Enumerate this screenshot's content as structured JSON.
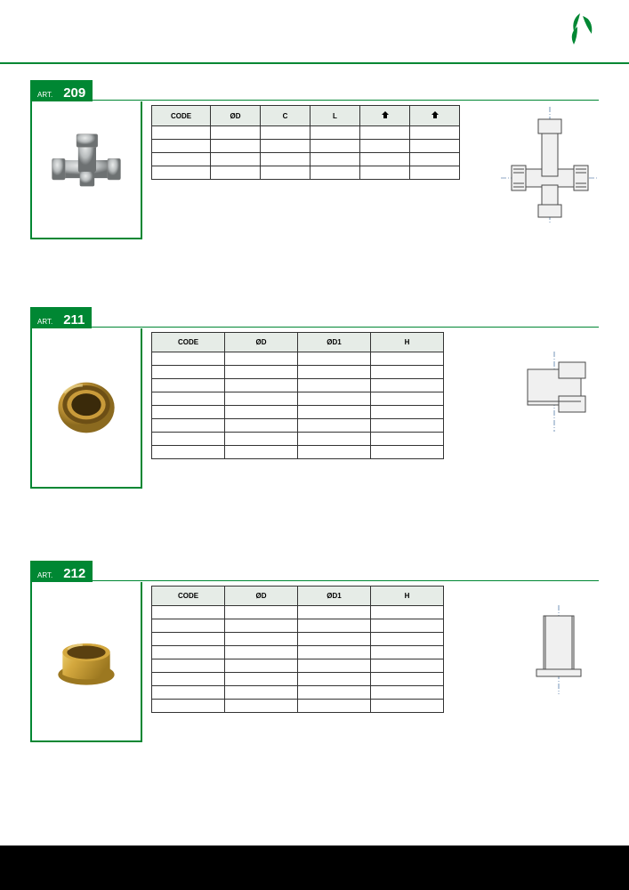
{
  "page": {
    "accent_color": "#008733",
    "header_bg": "#e6ece7",
    "border_color": "#333333",
    "bottom_bar_color": "#000000"
  },
  "logo": {
    "name": "brand-logo",
    "color": "#008733"
  },
  "articles": [
    {
      "id": "209",
      "art_label": "ART.",
      "art_number": "209",
      "image_desc": "chrome tee fitting",
      "image_colors": {
        "body": "#b8bcbd",
        "shadow": "#6d7172",
        "highlight": "#e8eaea"
      },
      "table": {
        "columns": [
          "CODE",
          "ØD",
          "C",
          "L",
          "⬤",
          "⬤"
        ],
        "rows": [
          [
            "",
            "",
            "",
            "",
            "",
            ""
          ],
          [
            "",
            "",
            "",
            "",
            "",
            ""
          ],
          [
            "",
            "",
            "",
            "",
            "",
            ""
          ],
          [
            "",
            "",
            "",
            "",
            "",
            ""
          ]
        ]
      },
      "diagram": {
        "type": "tee-fitting",
        "stroke": "#4a4a4a",
        "centerline": "#1b4f8a"
      }
    },
    {
      "id": "211",
      "art_label": "ART.",
      "art_number": "211",
      "image_desc": "brass insert ring",
      "image_colors": {
        "body": "#c99b3a",
        "shadow": "#8b6a1f",
        "highlight": "#e6c96f"
      },
      "table": {
        "columns": [
          "CODE",
          "ØD",
          "ØD1",
          "H"
        ],
        "rows": [
          [
            "",
            "",
            "",
            ""
          ],
          [
            "",
            "",
            "",
            ""
          ],
          [
            "",
            "",
            "",
            ""
          ],
          [
            "",
            "",
            "",
            ""
          ],
          [
            "",
            "",
            "",
            ""
          ],
          [
            "",
            "",
            "",
            ""
          ],
          [
            "",
            "",
            "",
            ""
          ],
          [
            "",
            "",
            "",
            ""
          ]
        ]
      },
      "diagram": {
        "type": "ring-section",
        "stroke": "#4a4a4a",
        "centerline": "#1b4f8a"
      }
    },
    {
      "id": "212",
      "art_label": "ART.",
      "art_number": "212",
      "image_desc": "brass sleeve",
      "image_colors": {
        "body": "#d4a83e",
        "shadow": "#9c7820",
        "highlight": "#f0d87a"
      },
      "table": {
        "columns": [
          "CODE",
          "ØD",
          "ØD1",
          "H"
        ],
        "rows": [
          [
            "",
            "",
            "",
            ""
          ],
          [
            "",
            "",
            "",
            ""
          ],
          [
            "",
            "",
            "",
            ""
          ],
          [
            "",
            "",
            "",
            ""
          ],
          [
            "",
            "",
            "",
            ""
          ],
          [
            "",
            "",
            "",
            ""
          ],
          [
            "",
            "",
            "",
            ""
          ],
          [
            "",
            "",
            "",
            ""
          ]
        ]
      },
      "diagram": {
        "type": "sleeve-section",
        "stroke": "#4a4a4a",
        "centerline": "#1b4f8a"
      }
    }
  ]
}
